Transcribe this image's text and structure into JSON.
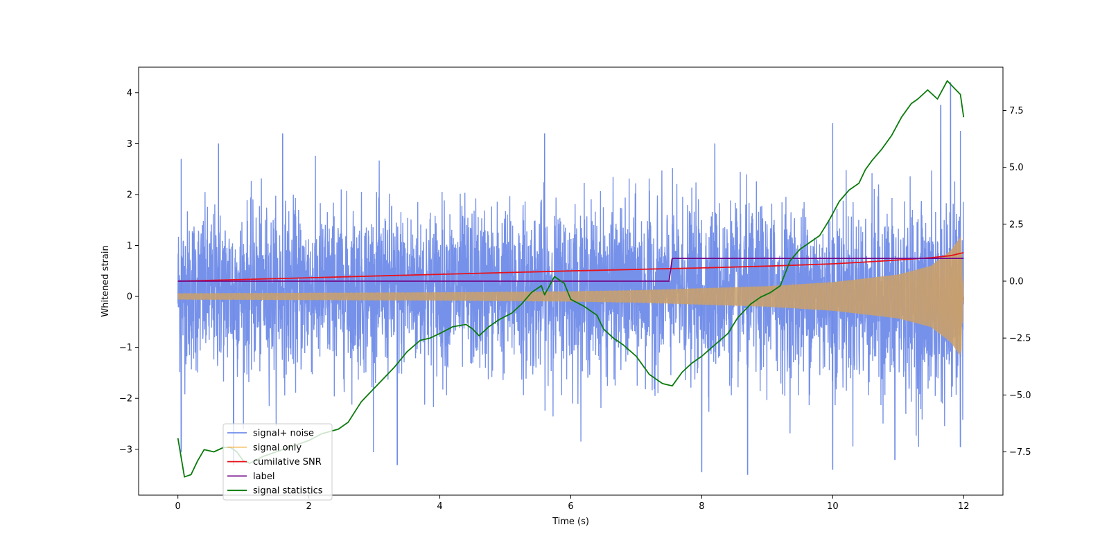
{
  "chart_data": {
    "type": "line",
    "title": "",
    "xlabel": "Time (s)",
    "ylabel_left": "Whitened strain",
    "ylabel_right": "",
    "xlim": [
      -0.6,
      12.6
    ],
    "ylim_left": [
      -3.9,
      4.5
    ],
    "ylim_right": [
      -9.4,
      9.4
    ],
    "x_ticks": [
      0,
      2,
      4,
      6,
      8,
      10,
      12
    ],
    "x_tick_labels": [
      "0",
      "2",
      "4",
      "6",
      "8",
      "10",
      "12"
    ],
    "y_left_ticks": [
      -3,
      -2,
      -1,
      0,
      1,
      2,
      3,
      4
    ],
    "y_left_tick_labels": [
      "−3",
      "−2",
      "−1",
      "0",
      "1",
      "2",
      "3",
      "4"
    ],
    "y_right_ticks": [
      -7.5,
      -5.0,
      -2.5,
      0.0,
      2.5,
      5.0,
      7.5
    ],
    "y_right_tick_labels": [
      "−7.5",
      "−5.0",
      "−2.5",
      "0.0",
      "2.5",
      "5.0",
      "7.5"
    ],
    "grid": false,
    "legend_position": "lower-left",
    "series": [
      {
        "name": "signal+ noise",
        "axis": "left",
        "color": "#6f8be8",
        "kind": "noise_band",
        "x_range": [
          0,
          12
        ],
        "band_upper": [
          [
            0,
            1.5
          ],
          [
            2,
            1.6
          ],
          [
            4,
            1.6
          ],
          [
            6,
            1.6
          ],
          [
            8,
            1.6
          ],
          [
            10,
            1.6
          ],
          [
            12,
            1.6
          ]
        ],
        "band_lower": [
          [
            0,
            -1.3
          ],
          [
            6,
            -1.3
          ],
          [
            8,
            -1.3
          ],
          [
            10,
            -1.5
          ],
          [
            12,
            -2.0
          ]
        ],
        "spike_max": [
          [
            0.05,
            2.7
          ],
          [
            0.62,
            3.0
          ],
          [
            1.6,
            3.2
          ],
          [
            5.6,
            3.2
          ],
          [
            8.2,
            3.0
          ],
          [
            10.0,
            3.4
          ],
          [
            11.65,
            3.75
          ],
          [
            11.8,
            4.2
          ],
          [
            11.95,
            3.25
          ]
        ],
        "spike_min": [
          [
            0.05,
            -3.05
          ],
          [
            0.85,
            -3.3
          ],
          [
            3.35,
            -3.3
          ],
          [
            8.0,
            -3.45
          ],
          [
            8.7,
            -3.5
          ],
          [
            10.0,
            -3.4
          ],
          [
            10.95,
            -3.2
          ],
          [
            11.95,
            -2.95
          ]
        ]
      },
      {
        "name": "signal only",
        "axis": "left",
        "color": "#f5a623",
        "kind": "chirp_envelope",
        "envelope": [
          [
            0,
            0.06
          ],
          [
            2,
            0.07
          ],
          [
            4,
            0.08
          ],
          [
            6,
            0.1
          ],
          [
            7,
            0.12
          ],
          [
            8,
            0.16
          ],
          [
            9,
            0.2
          ],
          [
            10,
            0.28
          ],
          [
            11,
            0.43
          ],
          [
            11.5,
            0.6
          ],
          [
            11.8,
            0.9
          ],
          [
            11.97,
            1.2
          ],
          [
            12,
            0.0
          ]
        ]
      },
      {
        "name": "cumilative SNR",
        "axis": "right",
        "color": "#e8111b",
        "kind": "line",
        "points": [
          [
            0,
            0.0
          ],
          [
            2,
            0.15
          ],
          [
            4,
            0.3
          ],
          [
            6,
            0.45
          ],
          [
            8,
            0.58
          ],
          [
            9,
            0.66
          ],
          [
            10,
            0.76
          ],
          [
            10.5,
            0.84
          ],
          [
            11,
            0.93
          ],
          [
            11.5,
            1.03
          ],
          [
            11.8,
            1.12
          ],
          [
            11.95,
            1.22
          ],
          [
            12,
            1.25
          ]
        ]
      },
      {
        "name": "label",
        "axis": "right",
        "color": "#740a8a",
        "kind": "line",
        "points": [
          [
            0,
            0.0
          ],
          [
            7.5,
            0.0
          ],
          [
            7.55,
            1.0
          ],
          [
            12,
            1.0
          ]
        ]
      },
      {
        "name": "signal statistics",
        "axis": "right",
        "color": "#0a7a0a",
        "kind": "line",
        "points": [
          [
            0,
            -6.9
          ],
          [
            0.1,
            -8.6
          ],
          [
            0.2,
            -8.5
          ],
          [
            0.3,
            -7.9
          ],
          [
            0.4,
            -7.4
          ],
          [
            0.55,
            -7.5
          ],
          [
            0.7,
            -7.3
          ],
          [
            0.8,
            -7.3
          ],
          [
            0.9,
            -7.5
          ],
          [
            1.0,
            -7.9
          ],
          [
            1.1,
            -8.0
          ],
          [
            1.3,
            -7.7
          ],
          [
            1.6,
            -7.4
          ],
          [
            1.8,
            -7.2
          ],
          [
            2.0,
            -7.0
          ],
          [
            2.2,
            -6.7
          ],
          [
            2.45,
            -6.5
          ],
          [
            2.6,
            -6.2
          ],
          [
            2.8,
            -5.3
          ],
          [
            2.9,
            -5.0
          ],
          [
            3.1,
            -4.4
          ],
          [
            3.3,
            -3.8
          ],
          [
            3.5,
            -3.1
          ],
          [
            3.7,
            -2.6
          ],
          [
            3.85,
            -2.5
          ],
          [
            4.0,
            -2.3
          ],
          [
            4.2,
            -2.0
          ],
          [
            4.4,
            -1.9
          ],
          [
            4.5,
            -2.1
          ],
          [
            4.6,
            -2.4
          ],
          [
            4.75,
            -2.0
          ],
          [
            4.9,
            -1.7
          ],
          [
            5.1,
            -1.4
          ],
          [
            5.25,
            -1.0
          ],
          [
            5.4,
            -0.5
          ],
          [
            5.55,
            -0.2
          ],
          [
            5.6,
            -0.6
          ],
          [
            5.75,
            0.2
          ],
          [
            5.9,
            -0.1
          ],
          [
            6.0,
            -0.8
          ],
          [
            6.2,
            -1.1
          ],
          [
            6.4,
            -1.5
          ],
          [
            6.5,
            -2.1
          ],
          [
            6.65,
            -2.5
          ],
          [
            6.8,
            -2.8
          ],
          [
            7.0,
            -3.3
          ],
          [
            7.2,
            -4.1
          ],
          [
            7.4,
            -4.5
          ],
          [
            7.55,
            -4.6
          ],
          [
            7.7,
            -4.0
          ],
          [
            7.85,
            -3.6
          ],
          [
            8.0,
            -3.3
          ],
          [
            8.2,
            -2.8
          ],
          [
            8.4,
            -2.3
          ],
          [
            8.55,
            -1.6
          ],
          [
            8.75,
            -1.0
          ],
          [
            8.9,
            -0.7
          ],
          [
            9.05,
            -0.5
          ],
          [
            9.2,
            -0.2
          ],
          [
            9.35,
            0.9
          ],
          [
            9.5,
            1.4
          ],
          [
            9.65,
            1.7
          ],
          [
            9.8,
            2.0
          ],
          [
            9.95,
            2.7
          ],
          [
            10.1,
            3.5
          ],
          [
            10.25,
            4.0
          ],
          [
            10.4,
            4.3
          ],
          [
            10.5,
            4.9
          ],
          [
            10.6,
            5.3
          ],
          [
            10.75,
            5.8
          ],
          [
            10.9,
            6.4
          ],
          [
            11.05,
            7.2
          ],
          [
            11.2,
            7.8
          ],
          [
            11.3,
            8.0
          ],
          [
            11.45,
            8.4
          ],
          [
            11.6,
            8.0
          ],
          [
            11.75,
            8.8
          ],
          [
            11.85,
            8.5
          ],
          [
            11.95,
            8.2
          ],
          [
            12.0,
            7.2
          ]
        ]
      }
    ]
  }
}
